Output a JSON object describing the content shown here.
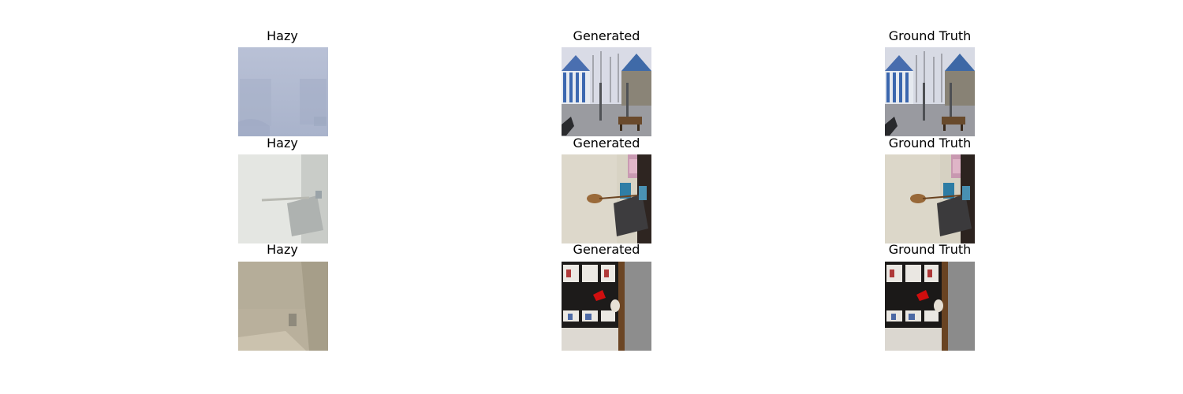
{
  "grid": {
    "rows": [
      {
        "panels": [
          {
            "title": "Hazy",
            "scene": "park-hazy"
          },
          {
            "title": "Generated",
            "scene": "park-clear"
          },
          {
            "title": "Ground Truth",
            "scene": "park-clear"
          }
        ]
      },
      {
        "panels": [
          {
            "title": "Hazy",
            "scene": "room-guitar-hazy"
          },
          {
            "title": "Generated",
            "scene": "room-guitar-clear"
          },
          {
            "title": "Ground Truth",
            "scene": "room-guitar-clear"
          }
        ]
      },
      {
        "panels": [
          {
            "title": "Hazy",
            "scene": "shelf-hazy"
          },
          {
            "title": "Generated",
            "scene": "shelf-clear"
          },
          {
            "title": "Ground Truth",
            "scene": "shelf-clear"
          }
        ]
      }
    ]
  }
}
